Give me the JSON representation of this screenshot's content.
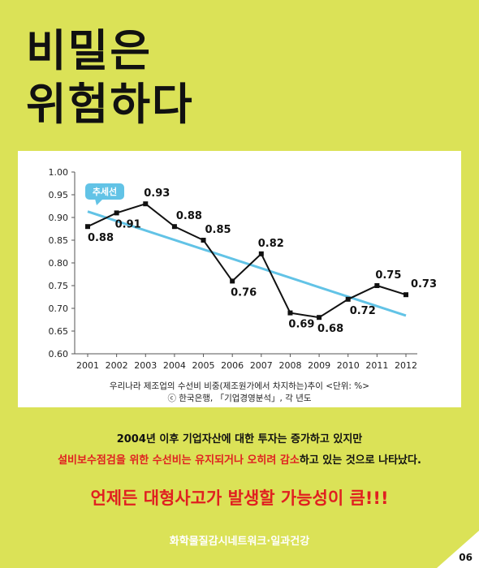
{
  "title": {
    "line1": "비밀은",
    "line2": "위험하다"
  },
  "chart_data": {
    "type": "line",
    "x": [
      "2001",
      "2002",
      "2003",
      "2004",
      "2005",
      "2006",
      "2007",
      "2008",
      "2009",
      "2010",
      "2011",
      "2012"
    ],
    "series": [
      {
        "values": [
          0.88,
          0.91,
          0.93,
          0.88,
          0.85,
          0.76,
          0.82,
          0.69,
          0.68,
          0.72,
          0.75,
          0.73
        ]
      }
    ],
    "value_labels": [
      "0.88",
      "0.91",
      "0.93",
      "0.88",
      "0.85",
      "0.76",
      "0.82",
      "0.69",
      "0.68",
      "0.72",
      "0.75",
      "0.73"
    ],
    "trendline": {
      "label": "추세선",
      "start": 0.913,
      "end": 0.684,
      "color": "#62c3e6"
    },
    "ylim": [
      0.6,
      1.0
    ],
    "yticks": [
      "0.60",
      "0.65",
      "0.70",
      "0.75",
      "0.80",
      "0.85",
      "0.90",
      "0.95",
      "1.00"
    ],
    "caption": "우리나라 제조업의 수선비 비중(제조원가에서 차지하는)추이 <단위: %>",
    "source": "ⓒ 한국은행, 「기업경영분석」, 각 년도",
    "line_color": "#111111"
  },
  "body": {
    "line1": "2004년 이후 기업자산에 대한 투자는 증가하고 있지만",
    "line2_highlight": "설비보수점검을 위한 수선비는 유지되거나 오히려 감소",
    "line2_rest": "하고 있는 것으로 나타났다."
  },
  "warning": "언제든 대형사고가 발생할 가능성이 큼!!!",
  "footer": "화학물질감시네트워크·일과건강",
  "page_number": "06",
  "colors": {
    "background": "#dbe257",
    "accent_red": "#e02020",
    "trend_blue": "#62c3e6"
  }
}
